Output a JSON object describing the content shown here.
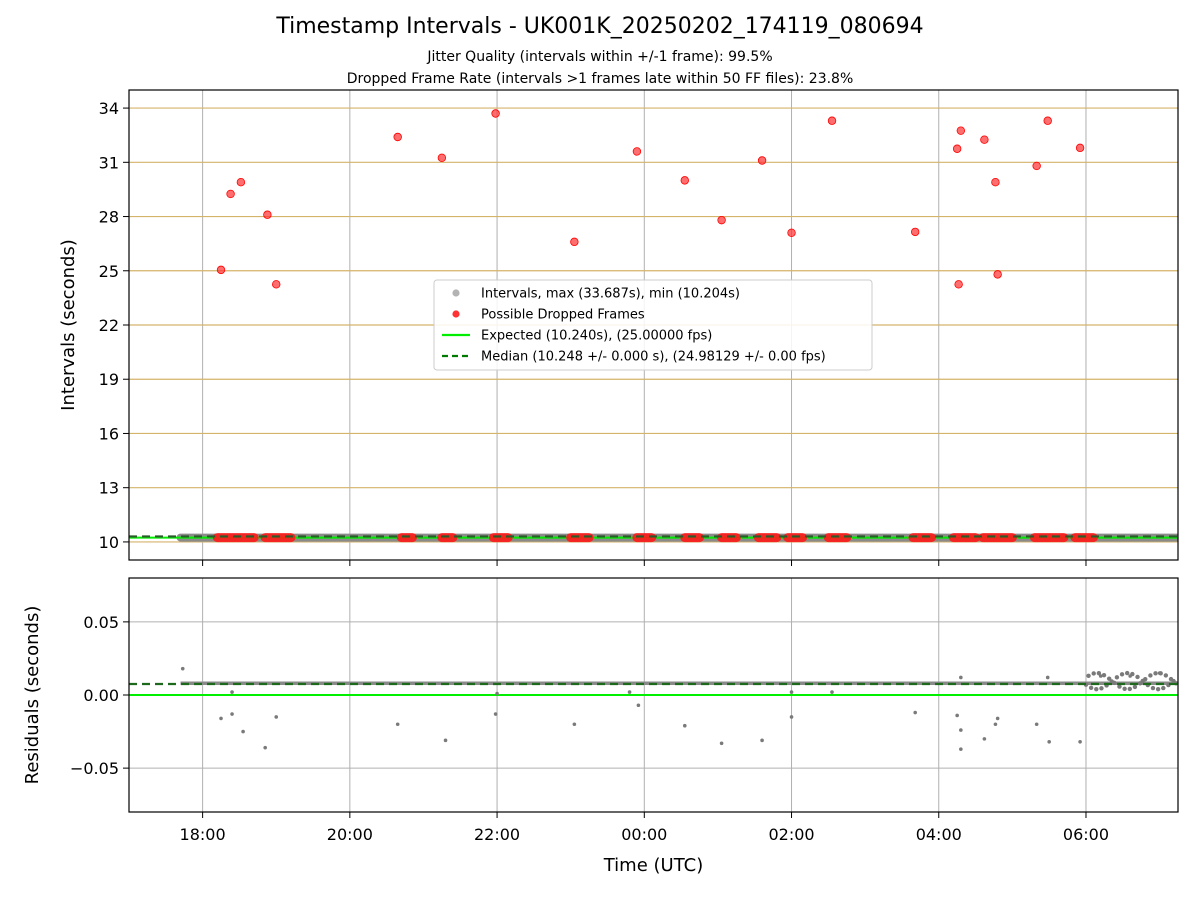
{
  "titles": {
    "main": "Timestamp Intervals - UK001K_20250202_174119_080694",
    "sub1": "Jitter Quality (intervals within +/-1 frame): 99.5%",
    "sub2": "Dropped Frame Rate (intervals >1 frames late within 50 FF files): 23.8%"
  },
  "chart_data": [
    {
      "type": "scatter",
      "ylabel": "Intervals (seconds)",
      "xlim_hours": [
        17.0,
        31.25
      ],
      "ylim": [
        9.0,
        35.0
      ],
      "yticks": [
        10,
        13,
        16,
        19,
        22,
        25,
        28,
        31,
        34
      ],
      "grid": true,
      "hlines_color": "#d4b36a",
      "legend_position": "center",
      "legend": [
        {
          "label": "Intervals, max (33.687s), min (10.204s)",
          "color": "#a0a0a0",
          "kind": "marker"
        },
        {
          "label": "Possible Dropped Frames",
          "color": "#ff0000",
          "kind": "marker"
        },
        {
          "label": "Expected (10.240s), (25.00000 fps)",
          "color": "#00ee00",
          "kind": "line"
        },
        {
          "label": "Median (10.248 +/- 0.000 s), (24.98129 +/- 0.00 fps)",
          "color": "#007a00",
          "kind": "dashed"
        }
      ],
      "expected": 10.24,
      "median": 10.248,
      "interval_band": {
        "from_hour": 17.7,
        "to_hour": 31.25,
        "value": 10.24
      },
      "series": [
        {
          "name": "Possible Dropped Frames",
          "color": "#ff3030",
          "points": [
            [
              18.25,
              25.05
            ],
            [
              18.38,
              29.25
            ],
            [
              18.52,
              29.9
            ],
            [
              18.88,
              28.1
            ],
            [
              19.0,
              24.25
            ],
            [
              20.65,
              32.4
            ],
            [
              21.25,
              31.25
            ],
            [
              21.98,
              33.7
            ],
            [
              23.05,
              26.6
            ],
            [
              23.9,
              31.6
            ],
            [
              24.55,
              30.0
            ],
            [
              25.05,
              27.8
            ],
            [
              25.6,
              31.1
            ],
            [
              26.0,
              27.1
            ],
            [
              26.55,
              33.3
            ],
            [
              27.68,
              27.15
            ],
            [
              28.25,
              31.75
            ],
            [
              28.3,
              32.75
            ],
            [
              28.27,
              24.25
            ],
            [
              28.62,
              32.25
            ],
            [
              28.77,
              29.9
            ],
            [
              28.8,
              24.8
            ],
            [
              29.33,
              30.8
            ],
            [
              29.48,
              33.3
            ],
            [
              29.92,
              31.8
            ]
          ],
          "low_clusters": [
            [
              18.2,
              18.7
            ],
            [
              18.85,
              19.2
            ],
            [
              20.7,
              20.85
            ],
            [
              21.25,
              21.4
            ],
            [
              21.95,
              22.15
            ],
            [
              23.0,
              23.25
            ],
            [
              23.9,
              24.1
            ],
            [
              24.55,
              24.75
            ],
            [
              25.05,
              25.25
            ],
            [
              25.55,
              25.8
            ],
            [
              25.95,
              26.15
            ],
            [
              26.5,
              26.75
            ],
            [
              27.65,
              27.9
            ],
            [
              28.2,
              28.5
            ],
            [
              28.6,
              29.0
            ],
            [
              29.3,
              29.7
            ],
            [
              29.85,
              30.1
            ]
          ]
        }
      ]
    },
    {
      "type": "scatter",
      "ylabel": "Residuals (seconds)",
      "xlabel": "Time (UTC)",
      "xlim_hours": [
        17.0,
        31.25
      ],
      "ylim": [
        -0.08,
        0.08
      ],
      "yticks": [
        -0.05,
        0.0,
        0.05
      ],
      "ytick_labels": [
        "−0.05",
        "0.00",
        "0.05"
      ],
      "xticks_hours": [
        18,
        20,
        22,
        24,
        26,
        28,
        30
      ],
      "xtick_labels": [
        "18:00",
        "20:00",
        "22:00",
        "00:00",
        "02:00",
        "04:00",
        "06:00"
      ],
      "grid": true,
      "expected_residual": 0.0,
      "median_residual": 0.0075,
      "residual_band": {
        "from_hour": 17.7,
        "to_hour": 31.25,
        "value": 0.008
      },
      "series": [
        {
          "name": "Residuals",
          "color": "#7a7a7a",
          "points": [
            [
              17.73,
              0.018
            ],
            [
              18.25,
              -0.016
            ],
            [
              18.4,
              -0.013
            ],
            [
              18.55,
              -0.025
            ],
            [
              18.85,
              -0.036
            ],
            [
              19.0,
              -0.015
            ],
            [
              20.65,
              -0.02
            ],
            [
              21.3,
              -0.031
            ],
            [
              21.98,
              -0.013
            ],
            [
              22.0,
              0.001
            ],
            [
              23.05,
              -0.02
            ],
            [
              23.92,
              -0.007
            ],
            [
              24.55,
              -0.021
            ],
            [
              25.05,
              -0.033
            ],
            [
              25.6,
              -0.031
            ],
            [
              26.0,
              -0.015
            ],
            [
              26.55,
              0.002
            ],
            [
              27.68,
              -0.012
            ],
            [
              28.25,
              -0.014
            ],
            [
              28.3,
              -0.024
            ],
            [
              28.3,
              -0.037
            ],
            [
              28.62,
              -0.03
            ],
            [
              28.77,
              -0.02
            ],
            [
              28.8,
              -0.016
            ],
            [
              29.33,
              -0.02
            ],
            [
              29.5,
              -0.032
            ],
            [
              29.92,
              -0.032
            ],
            [
              28.3,
              0.012
            ],
            [
              29.48,
              0.012
            ],
            [
              30.2,
              0.013
            ],
            [
              30.6,
              0.013
            ],
            [
              31.0,
              0.015
            ],
            [
              18.4,
              0.002
            ],
            [
              23.8,
              0.002
            ],
            [
              26.0,
              0.002
            ]
          ]
        }
      ]
    }
  ]
}
